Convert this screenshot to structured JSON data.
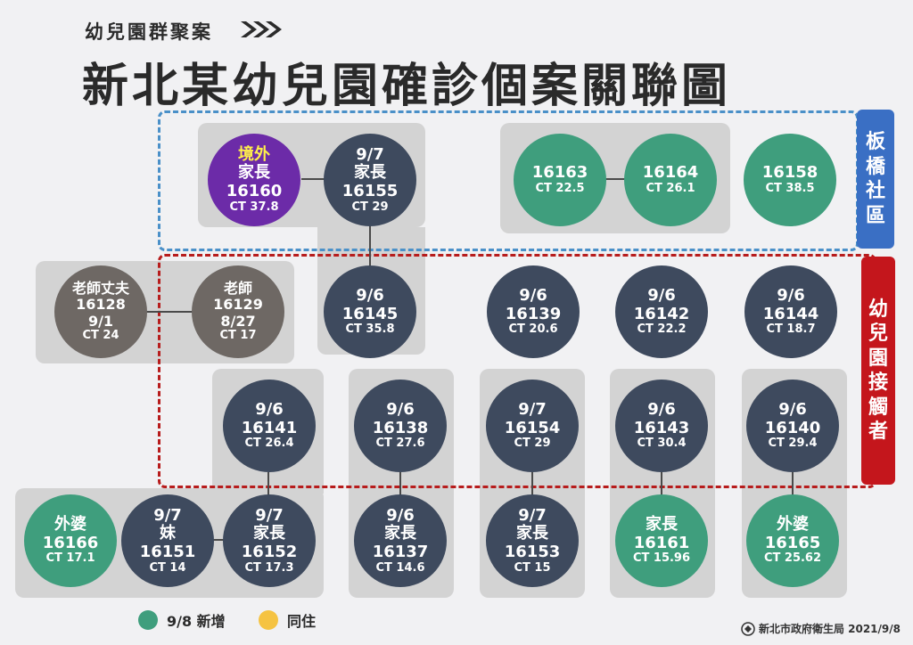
{
  "header": {
    "subtitle": "幼兒園群聚案",
    "title": "新北某幼兒園確診個案關聯圖"
  },
  "tags": {
    "banqiao": "板橋社區",
    "kindergarten": "幼兒園接觸者"
  },
  "colors": {
    "navy": "#3e4a5e",
    "green": "#3f9e7d",
    "purple": "#6c2ba8",
    "gray": "#6e6864",
    "cohabit": "#f5c342",
    "blue_dash": "#4a90c8",
    "red_dash": "#b71c1c"
  },
  "nodes": {
    "n16160": {
      "tag": "境外",
      "role": "家長",
      "id": "16160",
      "ct": "CT 37.8"
    },
    "n16155": {
      "date": "9/7",
      "role": "家長",
      "id": "16155",
      "ct": "CT 29"
    },
    "n16163": {
      "id": "16163",
      "ct": "CT 22.5"
    },
    "n16164": {
      "id": "16164",
      "ct": "CT 26.1"
    },
    "n16158": {
      "id": "16158",
      "ct": "CT 38.5"
    },
    "n16128": {
      "role": "老師丈夫",
      "id": "16128",
      "date": "9/1",
      "ct": "CT 24"
    },
    "n16129": {
      "role": "老師",
      "id": "16129",
      "date": "8/27",
      "ct": "CT 17"
    },
    "n16145": {
      "date": "9/6",
      "id": "16145",
      "ct": "CT 35.8"
    },
    "n16139": {
      "date": "9/6",
      "id": "16139",
      "ct": "CT 20.6"
    },
    "n16142": {
      "date": "9/6",
      "id": "16142",
      "ct": "CT 22.2"
    },
    "n16144": {
      "date": "9/6",
      "id": "16144",
      "ct": "CT 18.7"
    },
    "n16141": {
      "date": "9/6",
      "id": "16141",
      "ct": "CT 26.4"
    },
    "n16138": {
      "date": "9/6",
      "id": "16138",
      "ct": "CT 27.6"
    },
    "n16154": {
      "date": "9/7",
      "id": "16154",
      "ct": "CT 29"
    },
    "n16143": {
      "date": "9/6",
      "id": "16143",
      "ct": "CT 30.4"
    },
    "n16140": {
      "date": "9/6",
      "id": "16140",
      "ct": "CT 29.4"
    },
    "n16166": {
      "role": "外婆",
      "id": "16166",
      "ct": "CT 17.1"
    },
    "n16151": {
      "date": "9/7",
      "role": "妹",
      "id": "16151",
      "ct": "CT 14"
    },
    "n16152": {
      "date": "9/7",
      "role": "家長",
      "id": "16152",
      "ct": "CT 17.3"
    },
    "n16137": {
      "date": "9/6",
      "role": "家長",
      "id": "16137",
      "ct": "CT 14.6"
    },
    "n16153": {
      "date": "9/7",
      "role": "家長",
      "id": "16153",
      "ct": "CT 15"
    },
    "n16161": {
      "role": "家長",
      "id": "16161",
      "ct": "CT 15.96"
    },
    "n16165": {
      "role": "外婆",
      "id": "16165",
      "ct": "CT 25.62"
    }
  },
  "legend": {
    "new_label": "9/8 新增",
    "cohabit_label": "同住"
  },
  "source": "新北市政府衛生局 2021/9/8"
}
